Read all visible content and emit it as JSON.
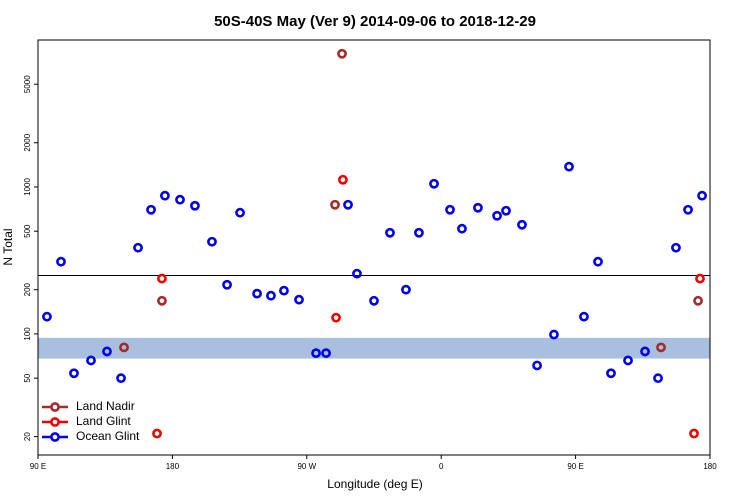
{
  "chart_data": {
    "type": "scatter",
    "title": "50S-40S May (Ver 9)   2014-09-06 to 2018-12-29",
    "xlabel": "Longitude (deg E)",
    "ylabel": "N Total",
    "log_y": true,
    "xlim": [
      90,
      540
    ],
    "xticks": [
      {
        "value": 90,
        "label": "90 E"
      },
      180,
      {
        "value": 270,
        "label": "90 W"
      },
      {
        "value": 360,
        "label": "0"
      },
      {
        "value": 450,
        "label": "90 E"
      },
      {
        "value": 540,
        "label": "180"
      }
    ],
    "ylim": [
      15,
      10000
    ],
    "yticks": [
      20,
      50,
      100,
      200,
      500,
      1000,
      2000,
      5000
    ],
    "reference_line": 250,
    "band": [
      68,
      94
    ],
    "band_color": "#a9bfdf",
    "legend": "bottom-left",
    "series": [
      {
        "name": "Land Nadir",
        "color": "#a52a2a",
        "x": [
          147.6,
          173,
          288.9,
          293.6,
          507.2,
          532
        ],
        "values": [
          81,
          168,
          757,
          8060,
          81,
          168
        ]
      },
      {
        "name": "Land Glint",
        "color": "#ee0000",
        "x": [
          173,
          169.7,
          289.6,
          294.2,
          529.3,
          533.3
        ],
        "values": [
          238,
          21,
          129,
          1120,
          21,
          238
        ]
      },
      {
        "name": "Ocean Glint",
        "color": "#0000ee",
        "x": [
          96,
          105.4,
          114.1,
          125.5,
          136.2,
          145.6,
          157,
          165.7,
          175,
          185.1,
          195.1,
          206.5,
          216.6,
          225.3,
          236.7,
          246,
          254.7,
          264.8,
          276.2,
          282.9,
          297.6,
          303.6,
          315,
          325.7,
          336.4,
          345.1,
          355.2,
          365.9,
          373.9,
          384.6,
          397.4,
          403.4,
          414.1,
          424.2,
          435.5,
          445.6,
          455.6,
          465,
          473.7,
          485.1,
          496.5,
          505.2,
          517.2,
          525.3,
          534.7
        ],
        "values": [
          131,
          310,
          54,
          66,
          76,
          50,
          386,
          700,
          872,
          819,
          745,
          424,
          216,
          668,
          188,
          182,
          197,
          171,
          74,
          74,
          757,
          257,
          168,
          488,
          200,
          488,
          1052,
          700,
          520,
          722,
          637,
          689,
          553,
          61,
          99,
          1374,
          131,
          310,
          54,
          66,
          76,
          50,
          386,
          700,
          872
        ]
      }
    ]
  }
}
